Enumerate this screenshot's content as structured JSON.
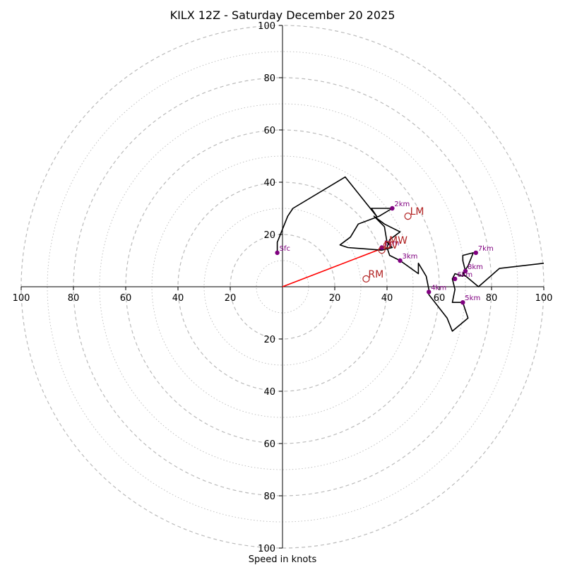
{
  "chart_data": {
    "type": "scatter",
    "title": "KILX 12Z - Saturday December 20 2025",
    "xlabel": "Speed in knots",
    "ylabel": "",
    "xlim": [
      -100,
      100
    ],
    "ylim": [
      -100,
      100
    ],
    "rings": [
      10,
      20,
      30,
      40,
      50,
      60,
      70,
      80,
      90,
      100
    ],
    "tick_labels": [
      "100",
      "80",
      "60",
      "40",
      "20",
      "20",
      "40",
      "60",
      "80",
      "100"
    ],
    "hodograph": {
      "name": "",
      "color": "#000000",
      "points": [
        [
          -2,
          13
        ],
        [
          -2,
          17
        ],
        [
          0,
          22
        ],
        [
          2,
          27
        ],
        [
          4,
          30
        ],
        [
          24,
          42
        ],
        [
          32,
          32
        ],
        [
          36,
          27
        ],
        [
          34,
          30
        ],
        [
          42,
          30
        ],
        [
          37,
          27
        ],
        [
          29,
          24
        ],
        [
          26,
          19
        ],
        [
          22,
          16
        ],
        [
          25,
          15
        ],
        [
          38,
          14
        ],
        [
          42,
          15
        ],
        [
          40,
          17
        ],
        [
          39,
          23
        ],
        [
          35,
          27
        ],
        [
          39,
          24
        ],
        [
          45,
          21
        ],
        [
          41,
          18
        ],
        [
          40,
          15
        ],
        [
          41,
          12
        ],
        [
          45,
          10
        ],
        [
          52,
          5
        ],
        [
          52,
          9
        ],
        [
          55,
          4
        ],
        [
          56,
          -1
        ],
        [
          56,
          -3
        ],
        [
          63,
          -12
        ],
        [
          65,
          -17
        ],
        [
          71,
          -12
        ],
        [
          69,
          -6
        ],
        [
          65,
          -6
        ],
        [
          66,
          -1
        ],
        [
          65,
          3
        ],
        [
          66,
          5
        ],
        [
          69,
          4
        ],
        [
          70,
          6
        ],
        [
          69,
          10
        ],
        [
          69,
          12
        ],
        [
          73,
          13
        ],
        [
          71,
          8
        ],
        [
          69,
          5
        ],
        [
          75,
          0
        ],
        [
          83,
          7
        ],
        [
          100,
          9
        ]
      ]
    },
    "height_labels": [
      {
        "label": "Sfc",
        "u": -2,
        "v": 13
      },
      {
        "label": "2km",
        "u": 42,
        "v": 30
      },
      {
        "label": "3km",
        "u": 45,
        "v": 10
      },
      {
        "label": "4km",
        "u": 56,
        "v": -2
      },
      {
        "label": "5km",
        "u": 69,
        "v": -6
      },
      {
        "label": "6km",
        "u": 66,
        "v": 3
      },
      {
        "label": "7km",
        "u": 74,
        "v": 13
      },
      {
        "label": "8km",
        "u": 70,
        "v": 6
      },
      {
        "label": "1km",
        "u": 38,
        "v": 15
      }
    ],
    "storm_motion": [
      {
        "label": "LM",
        "u": 48,
        "v": 27
      },
      {
        "label": "RM",
        "u": 32,
        "v": 3
      },
      {
        "label": "MW",
        "u": 40,
        "v": 16
      },
      {
        "label": "DV",
        "u": 38,
        "v": 14
      }
    ],
    "shear_vector": {
      "u": 39,
      "v": 15,
      "color": "#ff0000"
    },
    "colors": {
      "ring": "#bbbbbb",
      "marker": "#800080",
      "motion": "#b22222",
      "axis": "#000000"
    }
  }
}
